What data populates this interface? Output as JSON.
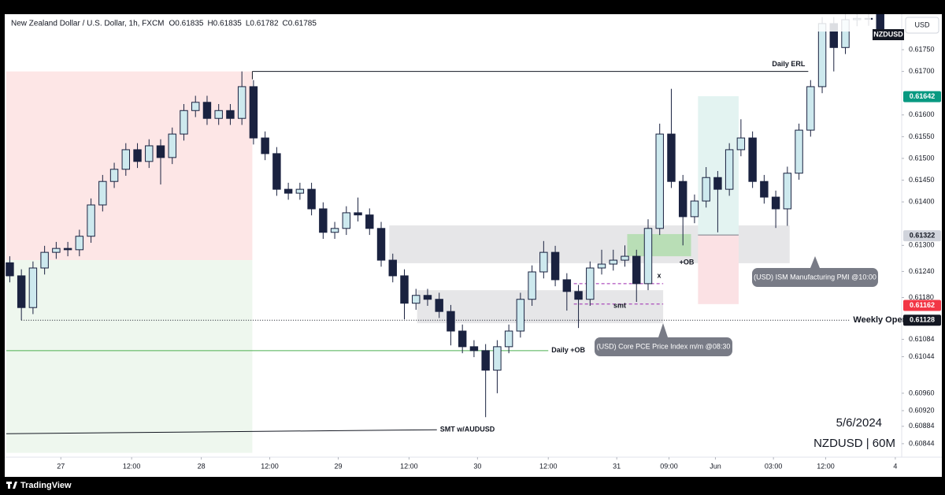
{
  "chart_data": {
    "type": "candlestick",
    "title": "New Zealand Dollar / U.S. Dollar, 1h, FXCM",
    "ohlc_labels": [
      "O0.61835",
      "H0.61835",
      "L0.61782",
      "C0.61785"
    ],
    "symbol": "NZDUSD",
    "currency": "USD",
    "date_label": "5/6/2024",
    "chart_label": "NZDUSD | 60M",
    "brand": "TradingView",
    "up_color": "#cde9ee",
    "down_color": "#1a2240",
    "open": [
      0.6126,
      0.6123,
      0.61157,
      0.61248,
      0.61284,
      0.61293,
      0.6129,
      0.61321,
      0.61393,
      0.61447,
      0.61475,
      0.6152,
      0.61493,
      0.61529,
      0.61502,
      0.61556,
      0.6161,
      0.61629,
      0.61592,
      0.6161,
      0.61592,
      0.61665,
      0.61547,
      0.61511,
      0.61429,
      0.6142,
      0.61429,
      0.61384,
      0.6133,
      0.61339,
      0.61375,
      0.6137,
      0.61339,
      0.61266,
      0.6123,
      0.61167,
      0.61185,
      0.61176,
      0.61148,
      0.61103,
      0.61067,
      0.61058,
      0.61013,
      0.61067,
      0.61103,
      0.61176,
      0.61239,
      0.61284,
      0.61221,
      0.61194,
      0.61176,
      0.61248,
      0.61257,
      0.61266,
      0.61275,
      0.61212,
      0.61339,
      0.61556,
      0.61447,
      0.61366,
      0.61402,
      0.61456,
      0.61429,
      0.6152,
      0.61547,
      0.61447,
      0.61411,
      0.61384,
      0.61466,
      0.61565,
      0.61665,
      0.6181,
      0.61755,
      0.61819,
      0.61822,
      0.61835
    ],
    "high": [
      0.61275,
      0.61245,
      0.61263,
      0.61299,
      0.61308,
      0.61308,
      0.61336,
      0.61408,
      0.61462,
      0.6149,
      0.61535,
      0.61535,
      0.61544,
      0.61544,
      0.61571,
      0.61625,
      0.61644,
      0.61644,
      0.61625,
      0.61625,
      0.617,
      0.6168,
      0.61562,
      0.61526,
      0.61444,
      0.61444,
      0.61444,
      0.61399,
      0.61354,
      0.6139,
      0.6141,
      0.61385,
      0.61354,
      0.61281,
      0.61245,
      0.612,
      0.612,
      0.61191,
      0.61163,
      0.61118,
      0.61082,
      0.61073,
      0.61082,
      0.61118,
      0.61191,
      0.61254,
      0.6131,
      0.61299,
      0.61236,
      0.61209,
      0.61263,
      0.6129,
      0.6129,
      0.613,
      0.6129,
      0.6136,
      0.6158,
      0.6166,
      0.61462,
      0.61417,
      0.6148,
      0.61471,
      0.61535,
      0.6159,
      0.61562,
      0.61462,
      0.61426,
      0.61481,
      0.6158,
      0.6168,
      0.61825,
      0.61825,
      0.61834,
      0.61837,
      0.61837,
      0.61835
    ],
    "low": [
      0.61215,
      0.61128,
      0.61142,
      0.61233,
      0.61269,
      0.61275,
      0.61275,
      0.61306,
      0.61378,
      0.61432,
      0.6146,
      0.61478,
      0.61478,
      0.6144,
      0.61487,
      0.61541,
      0.61595,
      0.61577,
      0.61577,
      0.61577,
      0.61577,
      0.61532,
      0.61496,
      0.61414,
      0.61405,
      0.61405,
      0.61369,
      0.61315,
      0.61315,
      0.61324,
      0.61355,
      0.61324,
      0.61251,
      0.61215,
      0.6113,
      0.61152,
      0.61161,
      0.61133,
      0.6107,
      0.61052,
      0.61043,
      0.60905,
      0.6096,
      0.61052,
      0.61088,
      0.61161,
      0.61224,
      0.61206,
      0.6115,
      0.6111,
      0.61161,
      0.61233,
      0.61242,
      0.61251,
      0.6117,
      0.61197,
      0.61324,
      0.61432,
      0.613,
      0.61351,
      0.61387,
      0.6133,
      0.61414,
      0.61505,
      0.61432,
      0.61396,
      0.6134,
      0.61345,
      0.61451,
      0.6155,
      0.6165,
      0.617,
      0.6174,
      0.61804,
      0.61805,
      0.61782
    ],
    "close": [
      0.6123,
      0.61157,
      0.61248,
      0.61284,
      0.61293,
      0.6129,
      0.61321,
      0.61393,
      0.61447,
      0.61475,
      0.6152,
      0.61493,
      0.61529,
      0.61502,
      0.61556,
      0.6161,
      0.61629,
      0.61592,
      0.6161,
      0.61592,
      0.61665,
      0.61547,
      0.61511,
      0.61429,
      0.6142,
      0.61429,
      0.61384,
      0.6133,
      0.61339,
      0.61375,
      0.6137,
      0.61339,
      0.61266,
      0.6123,
      0.61167,
      0.61185,
      0.61176,
      0.61148,
      0.61103,
      0.61067,
      0.61058,
      0.61013,
      0.61067,
      0.61103,
      0.61176,
      0.61239,
      0.61284,
      0.61221,
      0.61194,
      0.61176,
      0.61248,
      0.61257,
      0.61266,
      0.61275,
      0.61212,
      0.61339,
      0.61556,
      0.61447,
      0.61366,
      0.61402,
      0.61456,
      0.61429,
      0.6152,
      0.61547,
      0.61447,
      0.61411,
      0.61384,
      0.61466,
      0.61565,
      0.61665,
      0.6181,
      0.61755,
      0.61819,
      0.61822,
      0.6182,
      0.61785
    ],
    "xlim": [
      -0.3,
      76.85
    ],
    "xticks": [
      {
        "value": 4.4,
        "label": "27"
      },
      {
        "value": 10.5,
        "label": "12:00"
      },
      {
        "value": 16.5,
        "label": "28"
      },
      {
        "value": 22.4,
        "label": "12:00"
      },
      {
        "value": 28.3,
        "label": "29"
      },
      {
        "value": 34.4,
        "label": "12:00"
      },
      {
        "value": 40.3,
        "label": "30"
      },
      {
        "value": 46.4,
        "label": "12:00"
      },
      {
        "value": 52.3,
        "label": "31"
      },
      {
        "value": 56.8,
        "label": "09:00"
      },
      {
        "value": 60.8,
        "label": "Jun"
      },
      {
        "value": 65.8,
        "label": "03:00"
      },
      {
        "value": 70.3,
        "label": "12:00"
      },
      {
        "value": 76.3,
        "label": "4"
      }
    ],
    "ylim": [
      0.60813,
      0.61828
    ],
    "yticks": [
      {
        "value": 0.6175,
        "label": "0.61750"
      },
      {
        "value": 0.617,
        "label": "0.61700"
      },
      {
        "value": 0.616,
        "label": "0.61600"
      },
      {
        "value": 0.6155,
        "label": "0.61550"
      },
      {
        "value": 0.615,
        "label": "0.61500"
      },
      {
        "value": 0.6145,
        "label": "0.61450"
      },
      {
        "value": 0.614,
        "label": "0.61400"
      },
      {
        "value": 0.613,
        "label": "0.61300"
      },
      {
        "value": 0.6124,
        "label": "0.61240"
      },
      {
        "value": 0.6118,
        "label": "0.61180"
      },
      {
        "value": 0.61084,
        "label": "0.61084"
      },
      {
        "value": 0.61044,
        "label": "0.61044"
      },
      {
        "value": 0.6096,
        "label": "0.60960"
      },
      {
        "value": 0.6092,
        "label": "0.60920"
      },
      {
        "value": 0.60884,
        "label": "0.60884"
      },
      {
        "value": 0.60844,
        "label": "0.60844"
      }
    ],
    "price_tags": [
      {
        "value": 0.61642,
        "label": "0.61642",
        "color": "#089981"
      },
      {
        "value": 0.61322,
        "label": "0.61322",
        "color": "#d1d4dc"
      },
      {
        "value": 0.61162,
        "label": "0.61162",
        "color": "#f23645"
      },
      {
        "value": 0.61128,
        "label": "0.61128",
        "color": "#131722"
      }
    ],
    "zones": [
      {
        "x": [
          -0.3,
          20.9
        ],
        "y": [
          0.61266,
          0.617
        ],
        "color": "#fde6e6"
      },
      {
        "x": [
          -0.3,
          20.9
        ],
        "y": [
          0.60823,
          0.61266
        ],
        "color": "#eef7ee"
      },
      {
        "x": [
          32.7,
          67.2
        ],
        "y": [
          0.61259,
          0.61346
        ],
        "color": "#e6e6e8"
      },
      {
        "x": [
          35.1,
          56.3
        ],
        "y": [
          0.61121,
          0.61197
        ],
        "color": "#e6e6e8"
      },
      {
        "x": [
          53.2,
          58.7
        ],
        "y": [
          0.61275,
          0.61326
        ],
        "color": "#b9deb6"
      },
      {
        "x": [
          59.3,
          62.8
        ],
        "y": [
          0.61324,
          0.61643
        ],
        "color": "#e3f3f1"
      },
      {
        "x": [
          59.3,
          62.8
        ],
        "y": [
          0.61165,
          0.61324
        ],
        "color": "#fbe1e4"
      }
    ],
    "levels": [
      {
        "name": "Daily ERL",
        "x": [
          20.9,
          68.8
        ],
        "y": [
          0.617,
          0.617
        ],
        "color": "#131722"
      },
      {
        "name": "Weekly Open",
        "x": [
          1.0,
          72.4
        ],
        "y": [
          0.61128,
          0.61128
        ],
        "color": "#131722",
        "dash": "1 2"
      },
      {
        "name": "Daily +OB",
        "x": [
          -0.3,
          46.4
        ],
        "y": [
          0.61058,
          0.61058
        ],
        "color": "#4caf50"
      },
      {
        "name": "SMT w/AUDUSD",
        "x": [
          -0.3,
          36.8
        ],
        "y": [
          0.60867,
          0.60876
        ],
        "color": "#131722"
      },
      {
        "x": [
          48.6,
          56.3
        ],
        "y": [
          0.61212,
          0.61212
        ],
        "color": "#9c27b0",
        "dash": "4 3"
      },
      {
        "x": [
          48.6,
          56.3
        ],
        "y": [
          0.61165,
          0.61165
        ],
        "color": "#9c27b0",
        "dash": "4 3"
      }
    ],
    "annotations": [
      "+OB",
      "x",
      "smt"
    ],
    "events": [
      "(USD) ISM Manufacturing PMI @10:00",
      "(USD) Core PCE Price Index m/m @08:30"
    ]
  }
}
